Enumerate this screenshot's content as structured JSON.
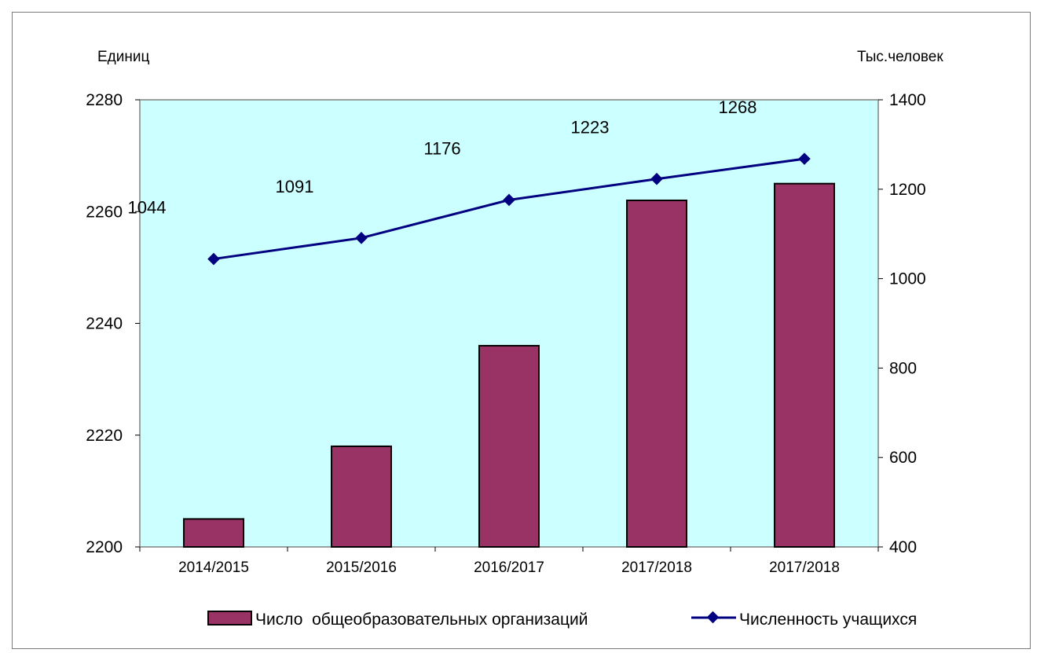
{
  "chart_data": {
    "type": "bar+line",
    "categories": [
      "2014/2015",
      "2015/2016",
      "2016/2017",
      "2017/2018",
      "2017/2018"
    ],
    "series": [
      {
        "name": "Число  общеобразовательных организаций",
        "kind": "bar",
        "axis": "left",
        "color": "#993366",
        "values": [
          2205,
          2218,
          2236,
          2262,
          2265
        ]
      },
      {
        "name": "Численность учащихся",
        "kind": "line",
        "axis": "right",
        "color": "#000080",
        "values": [
          1044,
          1091,
          1176,
          1223,
          1268
        ],
        "labels": [
          "1044",
          "1091",
          "1176",
          "1223",
          "1268"
        ]
      }
    ],
    "left_axis": {
      "label": "Единиц",
      "range": [
        2200,
        2280
      ],
      "ticks": [
        "2200",
        "2220",
        "2240",
        "2260",
        "2280"
      ]
    },
    "right_axis": {
      "label": "Тыс.человек",
      "range": [
        400,
        1400
      ],
      "ticks": [
        "400",
        "600",
        "800",
        "1000",
        "1200",
        "1400"
      ]
    },
    "plot_background": "#ccffff",
    "grid": false,
    "legend_position": "bottom"
  }
}
